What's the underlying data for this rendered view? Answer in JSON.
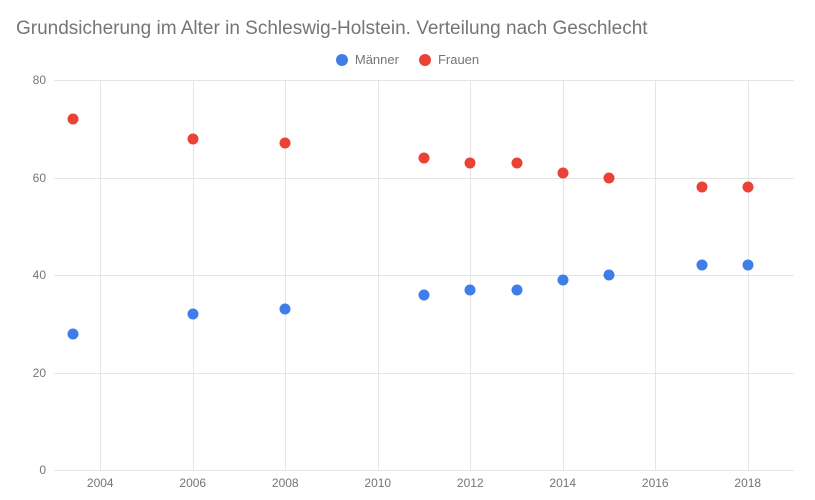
{
  "chart": {
    "type": "scatter",
    "title": "Grundsicherung im Alter in Schleswig-Holstein. Verteilung nach Geschlecht",
    "title_fontsize": 19,
    "title_color": "#757575",
    "background_color": "#ffffff",
    "grid_color": "#e5e5e5",
    "label_color": "#757575",
    "label_fontsize": 12,
    "legend_fontsize": 13,
    "xlim": [
      2003,
      2019
    ],
    "ylim": [
      0,
      80
    ],
    "xticks": [
      2004,
      2006,
      2008,
      2010,
      2012,
      2014,
      2016,
      2018
    ],
    "yticks": [
      0,
      20,
      40,
      60,
      80
    ],
    "marker_size": 11,
    "series": [
      {
        "name": "Männer",
        "color": "#3f7ee8",
        "points": [
          {
            "x": 2003.4,
            "y": 28
          },
          {
            "x": 2006,
            "y": 32
          },
          {
            "x": 2008,
            "y": 33
          },
          {
            "x": 2011,
            "y": 36
          },
          {
            "x": 2012,
            "y": 37
          },
          {
            "x": 2013,
            "y": 37
          },
          {
            "x": 2014,
            "y": 39
          },
          {
            "x": 2015,
            "y": 40
          },
          {
            "x": 2017,
            "y": 42
          },
          {
            "x": 2018,
            "y": 42
          }
        ]
      },
      {
        "name": "Frauen",
        "color": "#ea4335",
        "points": [
          {
            "x": 2003.4,
            "y": 72
          },
          {
            "x": 2006,
            "y": 68
          },
          {
            "x": 2008,
            "y": 67
          },
          {
            "x": 2011,
            "y": 64
          },
          {
            "x": 2012,
            "y": 63
          },
          {
            "x": 2013,
            "y": 63
          },
          {
            "x": 2014,
            "y": 61
          },
          {
            "x": 2015,
            "y": 60
          },
          {
            "x": 2017,
            "y": 58
          },
          {
            "x": 2018,
            "y": 58
          }
        ]
      }
    ]
  }
}
